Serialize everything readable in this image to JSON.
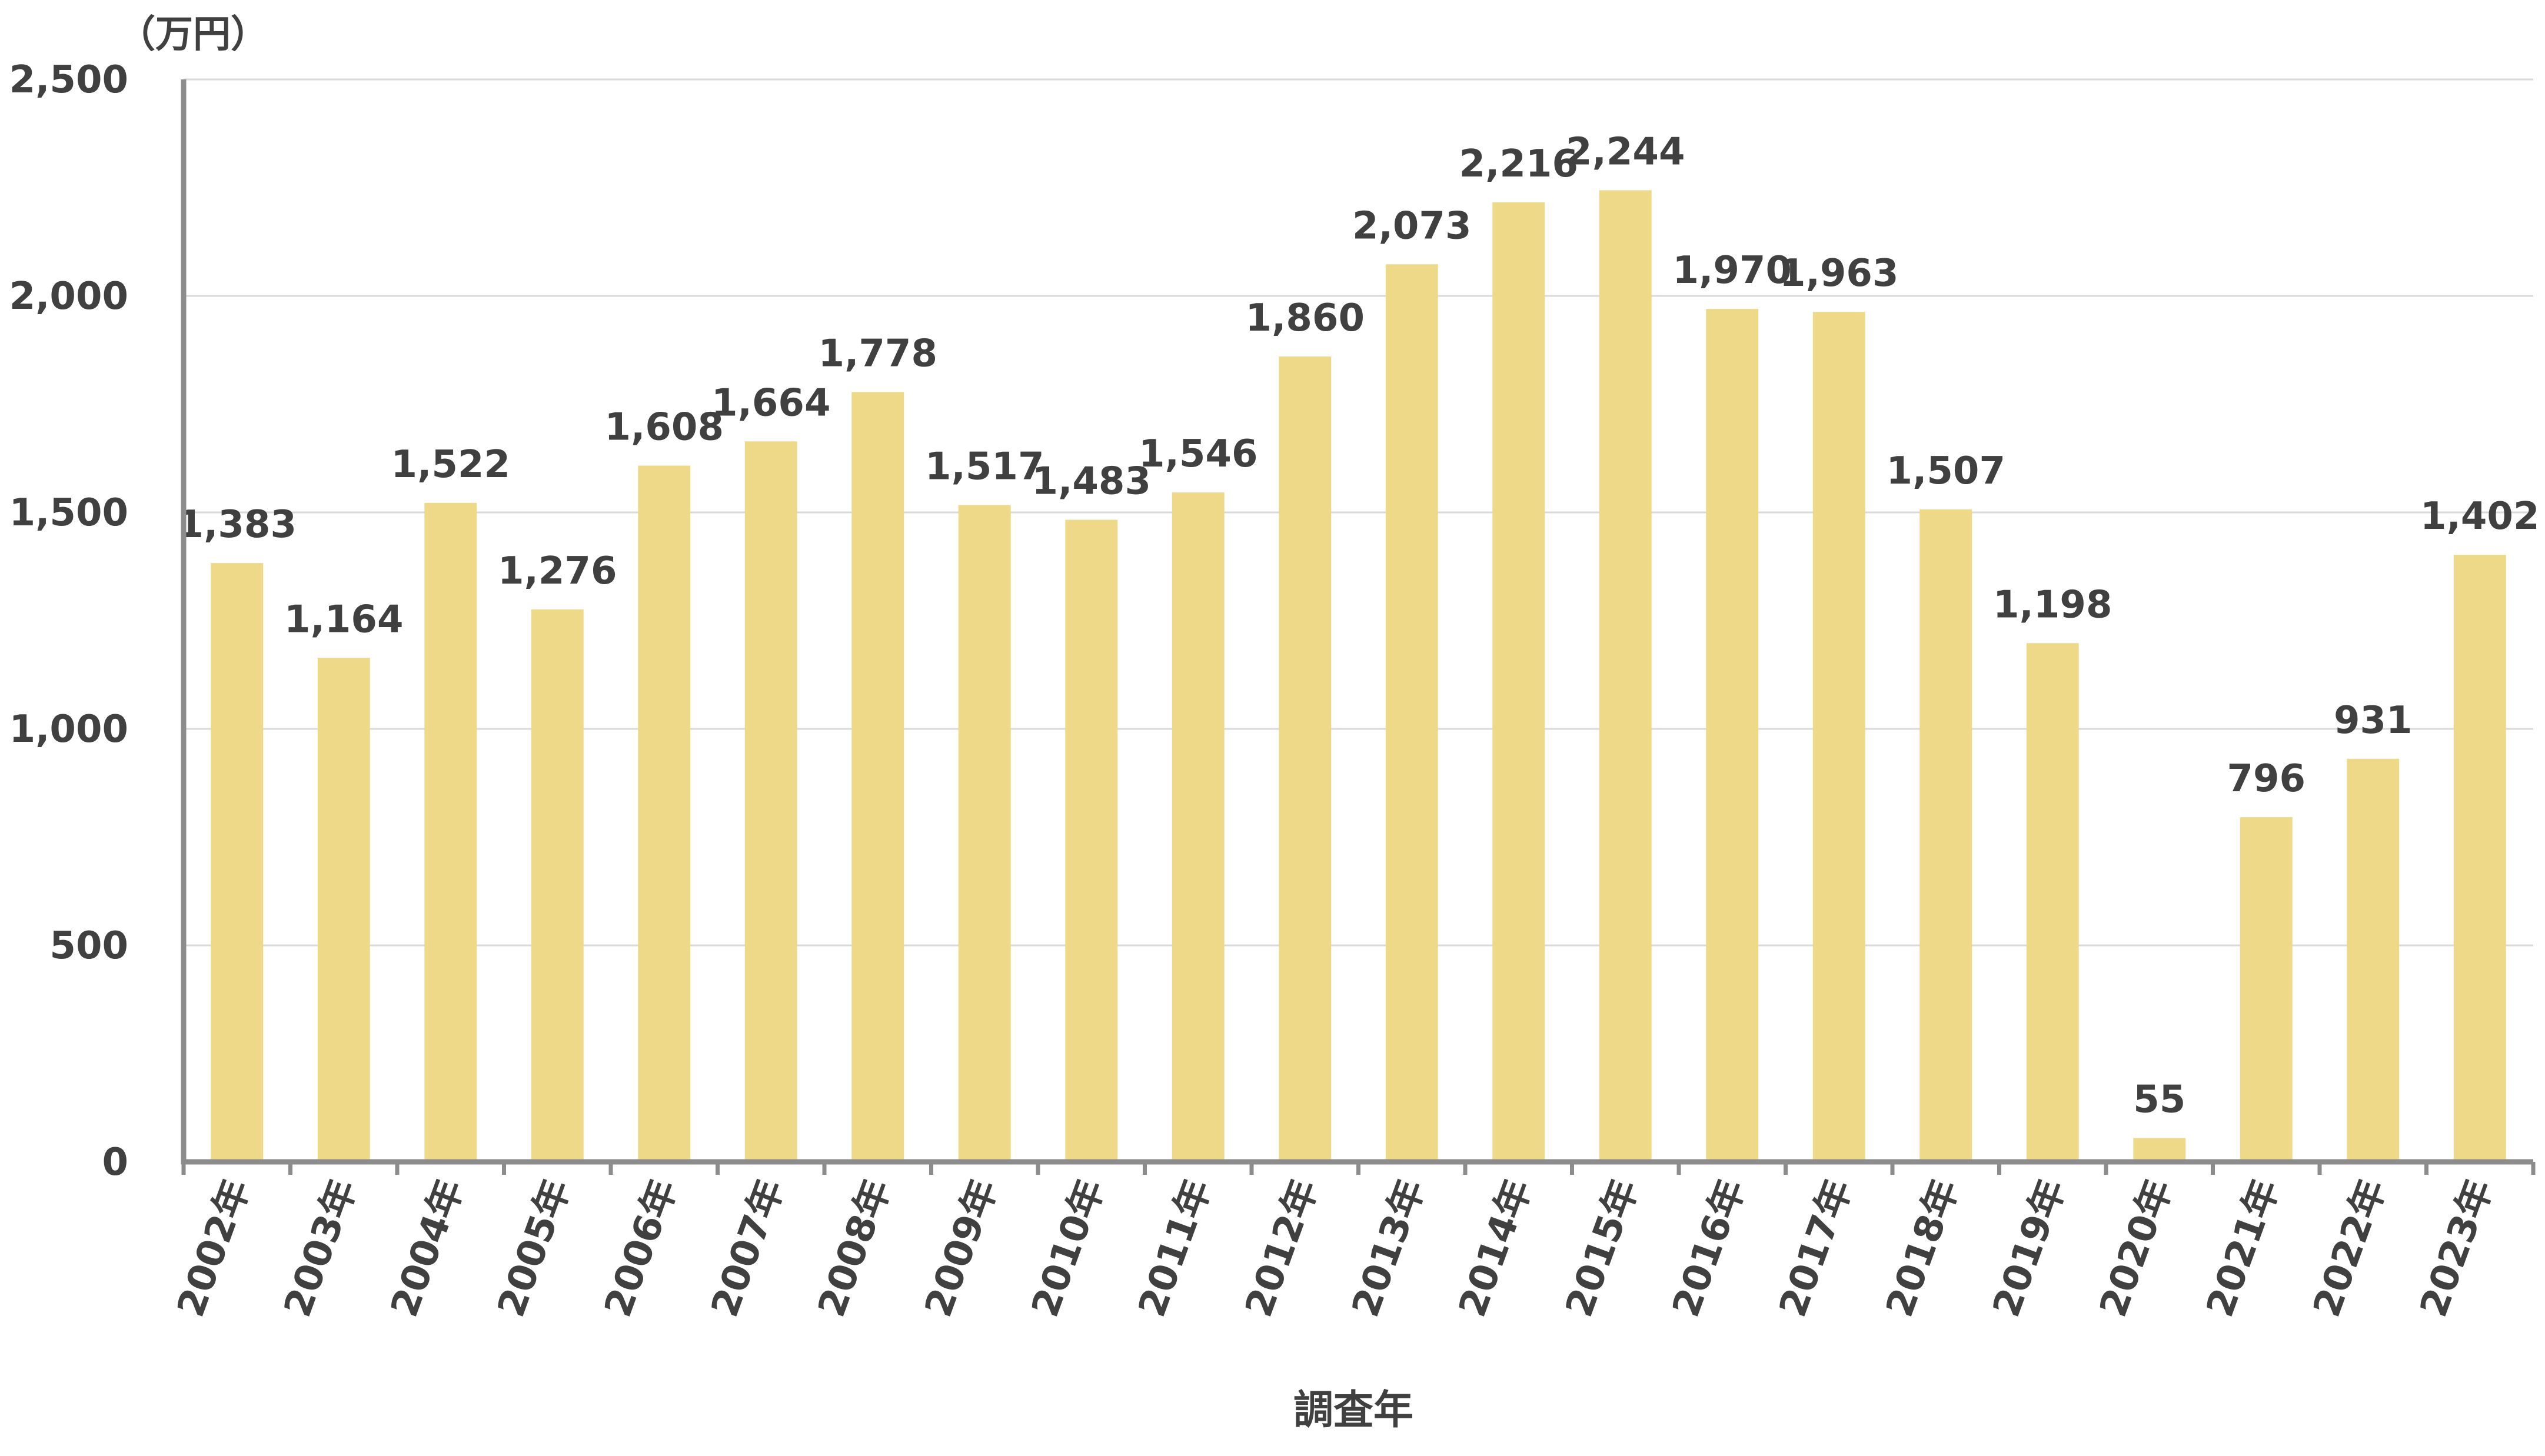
{
  "chart_data": {
    "type": "bar",
    "title": "",
    "unit_label": "（万円）",
    "xlabel": "調査年",
    "ylabel": "",
    "ylim": [
      0,
      2500
    ],
    "yticks": [
      "0",
      "500",
      "1,000",
      "1,500",
      "2,000",
      "2,500"
    ],
    "grid": true,
    "legend": "none",
    "bar_color": "#eed989",
    "categories": [
      "2002年",
      "2003年",
      "2004年",
      "2005年",
      "2006年",
      "2007年",
      "2008年",
      "2009年",
      "2010年",
      "2011年",
      "2012年",
      "2013年",
      "2014年",
      "2015年",
      "2016年",
      "2017年",
      "2018年",
      "2019年",
      "2020年",
      "2021年",
      "2022年",
      "2023年"
    ],
    "values": [
      1383,
      1164,
      1522,
      1276,
      1608,
      1664,
      1778,
      1517,
      1483,
      1546,
      1860,
      2073,
      2216,
      2244,
      1970,
      1963,
      1507,
      1198,
      55,
      796,
      931,
      1402
    ],
    "data_labels": [
      "1,383",
      "1,164",
      "1,522",
      "1,276",
      "1,608",
      "1,664",
      "1,778",
      "1,517",
      "1,483",
      "1,546",
      "1,860",
      "2,073",
      "2,216",
      "2,244",
      "1,970",
      "1,963",
      "1,507",
      "1,198",
      "55",
      "796",
      "931",
      "1,402"
    ]
  }
}
